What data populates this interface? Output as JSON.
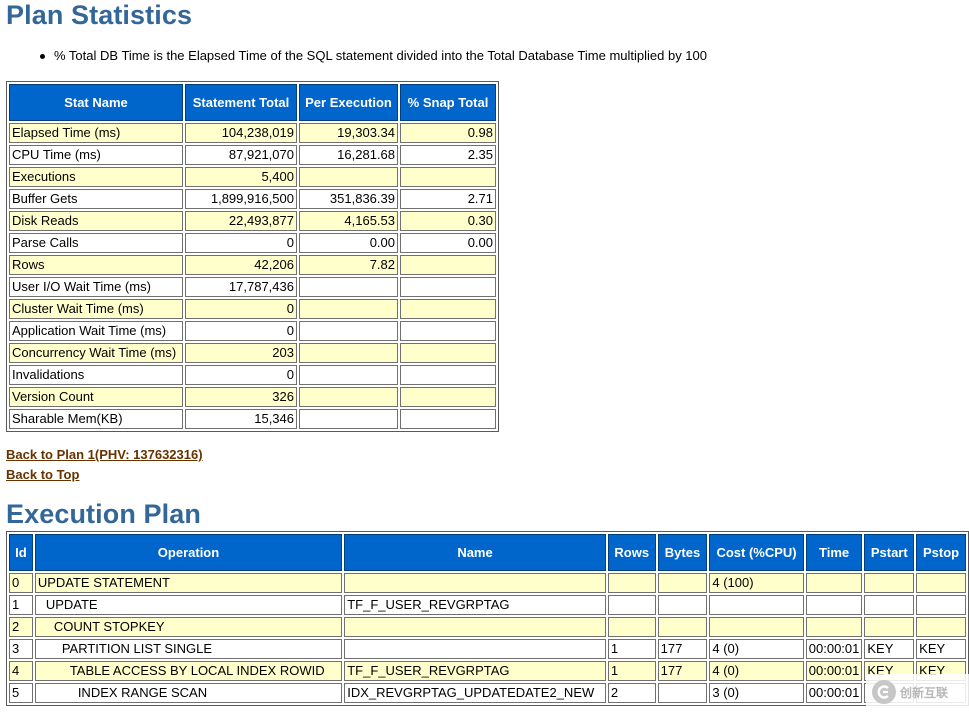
{
  "plan_statistics": {
    "title": "Plan Statistics",
    "note": "% Total DB Time is the Elapsed Time of the SQL statement divided into the Total Database Time multiplied by 100",
    "headers": [
      "Stat Name",
      "Statement Total",
      "Per Execution",
      "% Snap Total"
    ],
    "rows": [
      [
        "Elapsed Time (ms)",
        "104,238,019",
        "19,303.34",
        "0.98"
      ],
      [
        "CPU Time (ms)",
        "87,921,070",
        "16,281.68",
        "2.35"
      ],
      [
        "Executions",
        "5,400",
        "",
        ""
      ],
      [
        "Buffer Gets",
        "1,899,916,500",
        "351,836.39",
        "2.71"
      ],
      [
        "Disk Reads",
        "22,493,877",
        "4,165.53",
        "0.30"
      ],
      [
        "Parse Calls",
        "0",
        "0.00",
        "0.00"
      ],
      [
        "Rows",
        "42,206",
        "7.82",
        ""
      ],
      [
        "User I/O Wait Time (ms)",
        "17,787,436",
        "",
        ""
      ],
      [
        "Cluster Wait Time (ms)",
        "0",
        "",
        ""
      ],
      [
        "Application Wait Time (ms)",
        "0",
        "",
        ""
      ],
      [
        "Concurrency Wait Time (ms)",
        "203",
        "",
        ""
      ],
      [
        "Invalidations",
        "0",
        "",
        ""
      ],
      [
        "Version Count",
        "326",
        "",
        ""
      ],
      [
        "Sharable Mem(KB)",
        "15,346",
        "",
        ""
      ]
    ]
  },
  "links": {
    "back_to_plan": "Back to Plan 1(PHV: 137632316)",
    "back_to_top": "Back to Top"
  },
  "execution_plan": {
    "title": "Execution Plan",
    "headers": [
      "Id",
      "Operation",
      "Name",
      "Rows",
      "Bytes",
      "Cost (%CPU)",
      "Time",
      "Pstart",
      "Pstop"
    ],
    "rows": [
      [
        "0",
        "UPDATE STATEMENT",
        "",
        "",
        "",
        "4 (100)",
        "",
        "",
        ""
      ],
      [
        "1",
        "UPDATE",
        "TF_F_USER_REVGRPTAG",
        "",
        "",
        "",
        "",
        "",
        ""
      ],
      [
        "2",
        "COUNT STOPKEY",
        "",
        "",
        "",
        "",
        "",
        "",
        ""
      ],
      [
        "3",
        "PARTITION LIST SINGLE",
        "",
        "1",
        "177",
        "4 (0)",
        "00:00:01",
        "KEY",
        "KEY"
      ],
      [
        "4",
        "TABLE ACCESS BY LOCAL INDEX ROWID",
        "TF_F_USER_REVGRPTAG",
        "1",
        "177",
        "4 (0)",
        "00:00:01",
        "KEY",
        "KEY"
      ],
      [
        "5",
        "INDEX RANGE SCAN",
        "IDX_REVGRPTAG_UPDATEDATE2_NEW",
        "2",
        "",
        "3 (0)",
        "00:00:01",
        "",
        ""
      ]
    ]
  },
  "watermark": {
    "text": "创新互联",
    "icon": "logo-icon"
  }
}
